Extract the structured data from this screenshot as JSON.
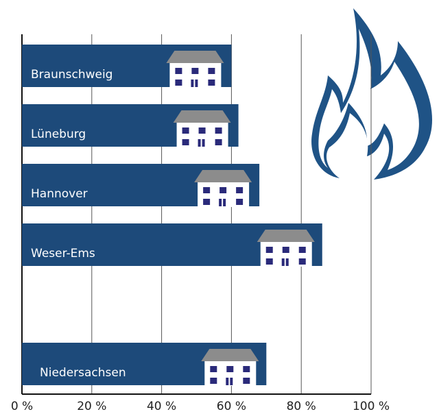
{
  "chart_data": {
    "type": "bar",
    "orientation": "horizontal",
    "categories": [
      "Braunschweig",
      "Lüneburg",
      "Hannover",
      "Weser-Ems",
      "Niedersachsen"
    ],
    "values": [
      60,
      62,
      68,
      86,
      70
    ],
    "color": "#1d4a7a",
    "xlim": [
      0,
      100
    ],
    "xticks": [
      {
        "value": 0,
        "label": "0 %"
      },
      {
        "value": 20,
        "label": "20 %"
      },
      {
        "value": 40,
        "label": "40 %"
      },
      {
        "value": 60,
        "label": "60 %"
      },
      {
        "value": 80,
        "label": "80 %"
      },
      {
        "value": 100,
        "label": "100 %"
      }
    ],
    "grid": true
  }
}
